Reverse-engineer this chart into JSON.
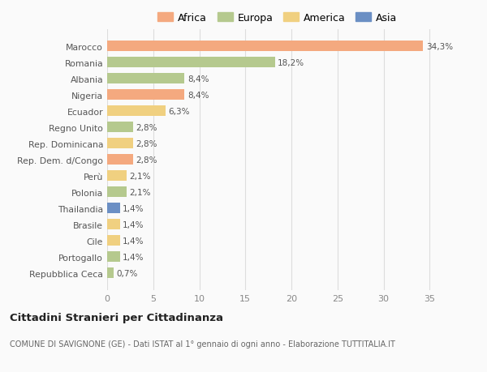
{
  "countries": [
    "Marocco",
    "Romania",
    "Albania",
    "Nigeria",
    "Ecuador",
    "Regno Unito",
    "Rep. Dominicana",
    "Rep. Dem. d/Congo",
    "Perù",
    "Polonia",
    "Thailandia",
    "Brasile",
    "Cile",
    "Portogallo",
    "Repubblica Ceca"
  ],
  "values": [
    34.3,
    18.2,
    8.4,
    8.4,
    6.3,
    2.8,
    2.8,
    2.8,
    2.1,
    2.1,
    1.4,
    1.4,
    1.4,
    1.4,
    0.7
  ],
  "labels": [
    "34,3%",
    "18,2%",
    "8,4%",
    "8,4%",
    "6,3%",
    "2,8%",
    "2,8%",
    "2,8%",
    "2,1%",
    "2,1%",
    "1,4%",
    "1,4%",
    "1,4%",
    "1,4%",
    "0,7%"
  ],
  "continents": [
    "Africa",
    "Europa",
    "Europa",
    "Africa",
    "America",
    "Europa",
    "America",
    "Africa",
    "America",
    "Europa",
    "Asia",
    "America",
    "America",
    "Europa",
    "Europa"
  ],
  "continent_colors": {
    "Africa": "#F4A97F",
    "Europa": "#B5C98E",
    "America": "#F0D080",
    "Asia": "#6B8FC4"
  },
  "legend_order": [
    "Africa",
    "Europa",
    "America",
    "Asia"
  ],
  "title": "Cittadini Stranieri per Cittadinanza",
  "subtitle": "COMUNE DI SAVIGNONE (GE) - Dati ISTAT al 1° gennaio di ogni anno - Elaborazione TUTTITALIA.IT",
  "xlim": [
    0,
    37
  ],
  "xticks": [
    0,
    5,
    10,
    15,
    20,
    25,
    30,
    35
  ],
  "background_color": "#FAFAFA",
  "grid_color": "#DDDDDD"
}
